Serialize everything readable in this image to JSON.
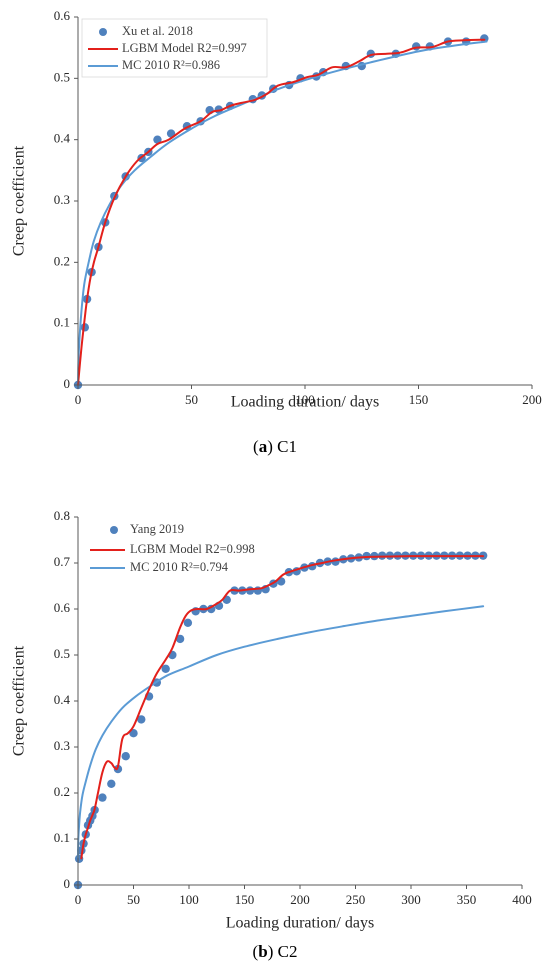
{
  "chart_data": [
    {
      "type": "scatter",
      "caption": {
        "letter": "a",
        "rest": " C1",
        "open": "(",
        "close": ")"
      },
      "xlabel": "Loading duration/ days",
      "ylabel": "Creep coefficient",
      "xlim": [
        0,
        200
      ],
      "ylim": [
        0,
        0.6
      ],
      "xticks": [
        0,
        50,
        100,
        150,
        200
      ],
      "yticks": [
        0,
        0.1,
        0.2,
        0.3,
        0.4,
        0.5,
        0.6
      ],
      "xtick_labels": [
        "0",
        "50",
        "100",
        "150",
        "200"
      ],
      "ytick_labels": [
        "0",
        "0.1",
        "0.2",
        "0.3",
        "0.4",
        "0.5",
        "0.6"
      ],
      "grid": false,
      "legend_position": "top-left",
      "series": [
        {
          "name": "Xu et al. 2018",
          "kind": "scatter",
          "color": "#4f81bd",
          "x": [
            0,
            3,
            4,
            6,
            9,
            12,
            16,
            21,
            28,
            31,
            35,
            41,
            48,
            54,
            58,
            62,
            67,
            77,
            81,
            86,
            93,
            98,
            105,
            108,
            118,
            125,
            129,
            140,
            149,
            155,
            163,
            171,
            179
          ],
          "y": [
            0,
            0.094,
            0.14,
            0.184,
            0.225,
            0.265,
            0.308,
            0.34,
            0.37,
            0.38,
            0.4,
            0.41,
            0.422,
            0.43,
            0.448,
            0.449,
            0.455,
            0.466,
            0.472,
            0.483,
            0.489,
            0.5,
            0.503,
            0.51,
            0.52,
            0.52,
            0.54,
            0.54,
            0.552,
            0.552,
            0.56,
            0.56,
            0.565
          ]
        },
        {
          "name": "LGBM Model R2=0.997",
          "kind": "line",
          "color": "#e3201b",
          "x": [
            0,
            1.5,
            3,
            4,
            5.5,
            7,
            9,
            12,
            16,
            21,
            26,
            31,
            35,
            40,
            47,
            54,
            59,
            63,
            67,
            72,
            78,
            83,
            88,
            95,
            101,
            106,
            112,
            118,
            124,
            129,
            136,
            142,
            149,
            156,
            163,
            170,
            179
          ],
          "y": [
            0,
            0.06,
            0.11,
            0.14,
            0.175,
            0.2,
            0.225,
            0.265,
            0.305,
            0.34,
            0.365,
            0.38,
            0.393,
            0.4,
            0.418,
            0.43,
            0.445,
            0.448,
            0.455,
            0.46,
            0.465,
            0.474,
            0.488,
            0.494,
            0.502,
            0.506,
            0.518,
            0.518,
            0.528,
            0.538,
            0.54,
            0.542,
            0.55,
            0.551,
            0.56,
            0.562,
            0.563
          ]
        },
        {
          "name": "MC 2010 R²=0.986",
          "kind": "line",
          "color": "#5b9bd5",
          "x": [
            0,
            0.3,
            1,
            2,
            3,
            5,
            7,
            10,
            14,
            19,
            25,
            32,
            40,
            50,
            60,
            75,
            90,
            110,
            130,
            150,
            165,
            180
          ],
          "y": [
            0,
            0.05,
            0.095,
            0.14,
            0.17,
            0.205,
            0.235,
            0.265,
            0.295,
            0.325,
            0.35,
            0.372,
            0.395,
            0.418,
            0.438,
            0.462,
            0.485,
            0.508,
            0.527,
            0.544,
            0.553,
            0.56
          ]
        }
      ]
    },
    {
      "type": "scatter",
      "caption": {
        "letter": "b",
        "rest": " C2",
        "open": "(",
        "close": ")"
      },
      "xlabel": "Loading duration/ days",
      "ylabel": "Creep coefficient",
      "xlim": [
        0,
        400
      ],
      "ylim": [
        0,
        0.8
      ],
      "xticks": [
        0,
        50,
        100,
        150,
        200,
        250,
        300,
        350,
        400
      ],
      "yticks": [
        0,
        0.1,
        0.2,
        0.3,
        0.4,
        0.5,
        0.6,
        0.7,
        0.8
      ],
      "xtick_labels": [
        "0",
        "50",
        "100",
        "150",
        "200",
        "250",
        "300",
        "350",
        "400"
      ],
      "ytick_labels": [
        "0",
        "0.1",
        "0.2",
        "0.3",
        "0.4",
        "0.5",
        "0.6",
        "0.7",
        "0.8"
      ],
      "grid": false,
      "legend_position": "top-left",
      "series": [
        {
          "name": "Yang 2019",
          "kind": "scatter",
          "color": "#4f81bd",
          "x": [
            0,
            1,
            3,
            5,
            7,
            9,
            11,
            13,
            15,
            22,
            30,
            36,
            43,
            50,
            57,
            64,
            71,
            79,
            85,
            92,
            99,
            106,
            113,
            120,
            127,
            134,
            141,
            148,
            155,
            162,
            169,
            176,
            183,
            190,
            197,
            204,
            211,
            218,
            225,
            232,
            239,
            246,
            253,
            260,
            267,
            274,
            281,
            288,
            295,
            302,
            309,
            316,
            323,
            330,
            337,
            344,
            351,
            358,
            365
          ],
          "y": [
            0,
            0.057,
            0.075,
            0.09,
            0.11,
            0.13,
            0.14,
            0.15,
            0.163,
            0.19,
            0.22,
            0.252,
            0.28,
            0.33,
            0.36,
            0.41,
            0.44,
            0.47,
            0.5,
            0.535,
            0.57,
            0.595,
            0.6,
            0.6,
            0.607,
            0.62,
            0.64,
            0.64,
            0.64,
            0.64,
            0.643,
            0.655,
            0.66,
            0.68,
            0.682,
            0.69,
            0.693,
            0.7,
            0.703,
            0.703,
            0.708,
            0.71,
            0.712,
            0.715,
            0.715,
            0.716,
            0.716,
            0.716,
            0.716,
            0.716,
            0.716,
            0.716,
            0.716,
            0.716,
            0.716,
            0.716,
            0.716,
            0.716,
            0.716
          ]
        },
        {
          "name": "LGBM Model R2=0.998",
          "kind": "line",
          "color": "#e3201b",
          "x": [
            3,
            5,
            7,
            9,
            11,
            13,
            15,
            18,
            22,
            26,
            30,
            33,
            36,
            40,
            45,
            50,
            57,
            64,
            71,
            79,
            85,
            92,
            97,
            102,
            108,
            116,
            124,
            130,
            137,
            145,
            155,
            165,
            172,
            178,
            185,
            192,
            200,
            210,
            220,
            230,
            245,
            260,
            280,
            300,
            330,
            365
          ],
          "y": [
            0.058,
            0.09,
            0.11,
            0.125,
            0.14,
            0.152,
            0.165,
            0.2,
            0.245,
            0.268,
            0.265,
            0.255,
            0.258,
            0.318,
            0.33,
            0.345,
            0.385,
            0.425,
            0.46,
            0.49,
            0.515,
            0.56,
            0.585,
            0.597,
            0.6,
            0.6,
            0.61,
            0.62,
            0.64,
            0.64,
            0.643,
            0.645,
            0.652,
            0.66,
            0.675,
            0.682,
            0.688,
            0.695,
            0.7,
            0.705,
            0.71,
            0.713,
            0.714,
            0.715,
            0.715,
            0.715
          ]
        },
        {
          "name": "MC 2010 R²=0.794",
          "kind": "line",
          "color": "#5b9bd5",
          "x": [
            0,
            0.3,
            1,
            2,
            4,
            7,
            11,
            16,
            22,
            30,
            40,
            52,
            65,
            80,
            100,
            125,
            150,
            180,
            210,
            240,
            270,
            300,
            330,
            365
          ],
          "y": [
            0.06,
            0.1,
            0.13,
            0.16,
            0.195,
            0.225,
            0.26,
            0.295,
            0.325,
            0.355,
            0.385,
            0.41,
            0.432,
            0.455,
            0.475,
            0.5,
            0.518,
            0.535,
            0.55,
            0.563,
            0.575,
            0.585,
            0.595,
            0.606
          ]
        }
      ]
    }
  ]
}
